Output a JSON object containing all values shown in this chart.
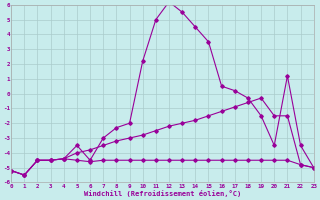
{
  "xlabel": "Windchill (Refroidissement éolien,°C)",
  "bg_color": "#c8ecec",
  "line_color": "#990099",
  "grid_color": "#aacccc",
  "xmin": 0,
  "xmax": 23,
  "ymin": -6,
  "ymax": 6,
  "series": [
    {
      "x": [
        0,
        1,
        2,
        3,
        4,
        5,
        6,
        7,
        8,
        9,
        10,
        11,
        12,
        13,
        14,
        15,
        16,
        17,
        18,
        19,
        20,
        21,
        22,
        23
      ],
      "y": [
        -5.2,
        -5.5,
        -4.5,
        -4.5,
        -4.4,
        -4.5,
        -4.6,
        -4.5,
        -4.5,
        -4.5,
        -4.5,
        -4.5,
        -4.5,
        -4.5,
        -4.5,
        -4.5,
        -4.5,
        -4.5,
        -4.5,
        -4.5,
        -4.5,
        -4.5,
        -4.8,
        -5.0
      ]
    },
    {
      "x": [
        0,
        1,
        2,
        3,
        4,
        5,
        6,
        7,
        8,
        9,
        10,
        11,
        12,
        13,
        14,
        15,
        16,
        17,
        18,
        19,
        20,
        21,
        22,
        23
      ],
      "y": [
        -5.2,
        -5.5,
        -4.5,
        -4.5,
        -4.4,
        -4.0,
        -3.8,
        -3.5,
        -3.2,
        -3.0,
        -2.8,
        -2.5,
        -2.2,
        -2.0,
        -1.8,
        -1.5,
        -1.2,
        -0.9,
        -0.6,
        -0.3,
        -1.5,
        -1.5,
        -4.8,
        -5.0
      ]
    },
    {
      "x": [
        0,
        1,
        2,
        3,
        4,
        5,
        6,
        7,
        8,
        9,
        10,
        11,
        12,
        13,
        14,
        15,
        16,
        17,
        18,
        19,
        20,
        21,
        22,
        23
      ],
      "y": [
        -5.2,
        -5.5,
        -4.5,
        -4.5,
        -4.4,
        -3.5,
        -4.5,
        -3.0,
        -2.3,
        -2.0,
        2.2,
        5.0,
        6.2,
        5.5,
        4.5,
        3.5,
        0.5,
        0.2,
        -0.3,
        -1.5,
        -3.5,
        1.2,
        -3.5,
        -5.0
      ]
    }
  ]
}
